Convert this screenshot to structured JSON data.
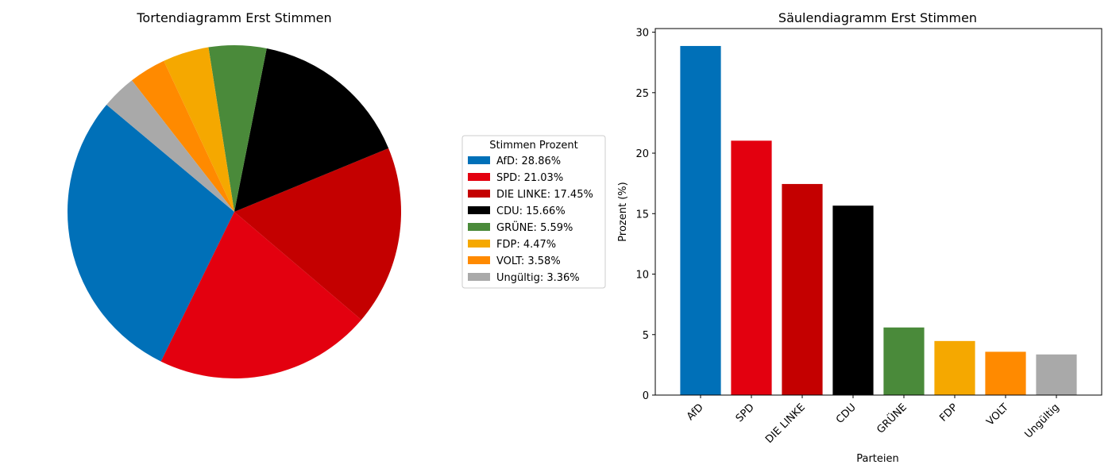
{
  "chart_data": [
    {
      "type": "pie",
      "title": "Tortendiagramm Erst Stimmen",
      "legend": {
        "title": "Stimmen Prozent",
        "placement": "right",
        "entries": [
          "AfD: 28.86%",
          "SPD: 21.03%",
          "DIE LINKE: 17.45%",
          "CDU: 15.66%",
          "GRÜNE: 5.59%",
          "FDP: 4.47%",
          "VOLT: 3.58%",
          "Ungültig: 3.36%"
        ]
      },
      "categories": [
        "AfD",
        "SPD",
        "DIE LINKE",
        "CDU",
        "GRÜNE",
        "FDP",
        "VOLT",
        "Ungültig"
      ],
      "values": [
        28.86,
        21.03,
        17.45,
        15.66,
        5.59,
        4.47,
        3.58,
        3.36
      ],
      "colors": [
        "#0070b8",
        "#e3000f",
        "#c40000",
        "#000000",
        "#4a8a3a",
        "#f5a800",
        "#ff8a00",
        "#a9a9a9"
      ],
      "start_angle_deg": 140
    },
    {
      "type": "bar",
      "title": "Säulendiagramm Erst Stimmen",
      "xlabel": "Parteien",
      "ylabel": "Prozent (%)",
      "categories": [
        "AfD",
        "SPD",
        "DIE LINKE",
        "CDU",
        "GRÜNE",
        "FDP",
        "VOLT",
        "Ungültig"
      ],
      "values": [
        28.86,
        21.03,
        17.45,
        15.66,
        5.59,
        4.47,
        3.58,
        3.36
      ],
      "colors": [
        "#0070b8",
        "#e3000f",
        "#c40000",
        "#000000",
        "#4a8a3a",
        "#f5a800",
        "#ff8a00",
        "#a9a9a9"
      ],
      "ylim": [
        0,
        30.3
      ],
      "yticks": [
        0,
        5,
        10,
        15,
        20,
        25,
        30
      ],
      "grid": false,
      "xtick_rotation_deg": 45
    }
  ]
}
